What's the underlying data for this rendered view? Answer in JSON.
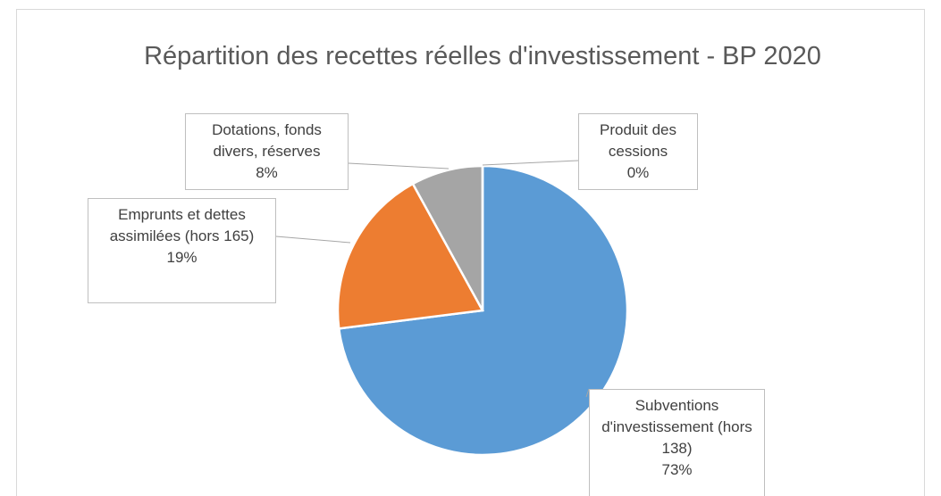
{
  "chart_data": {
    "type": "pie",
    "title": "Répartition des recettes réelles d'investissement - BP 2020",
    "categories": [
      "Subventions d'investissement (hors 138)",
      "Emprunts et dettes assimilées (hors 165)",
      "Dotations, fonds divers, réserves",
      "Produit des cessions"
    ],
    "values": [
      73,
      19,
      8,
      0
    ],
    "value_labels": [
      "73%",
      "19%",
      "8%",
      "0%"
    ],
    "colors": [
      "#5b9bd5",
      "#ed7d31",
      "#a5a5a5",
      "#ffc000"
    ]
  }
}
